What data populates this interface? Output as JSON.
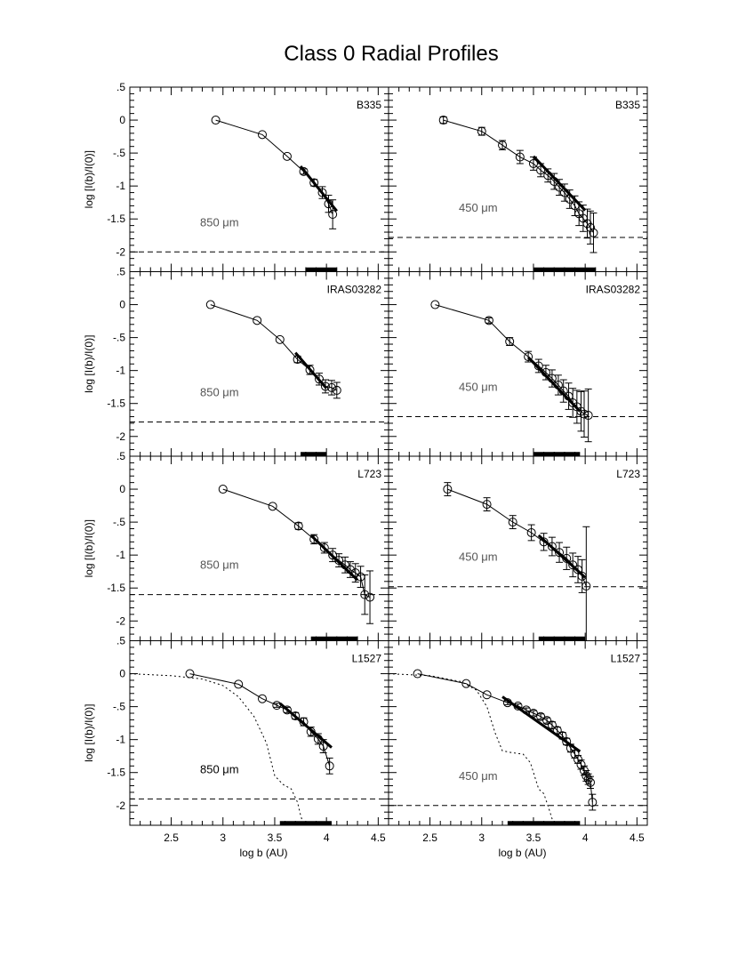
{
  "title": "Class 0 Radial Profiles",
  "xlabel": "log b (AU)",
  "ylabel": "log [I(b)/I(0)]",
  "xlim": [
    2.1,
    4.6
  ],
  "ylim": [
    -2.3,
    0.5
  ],
  "xticks": [
    "2.5",
    "3",
    "3.5",
    "4",
    "4.5"
  ],
  "yticks": [
    ".5",
    "0",
    "-.5",
    "-1",
    "-1.5",
    "-2"
  ],
  "chart_data": [
    {
      "type": "scatter",
      "source": "B335",
      "wavelength_label": "850 μm",
      "x": [
        2.93,
        3.38,
        3.62,
        3.78,
        3.88,
        3.96,
        4.02,
        4.06
      ],
      "y": [
        0.0,
        -0.22,
        -0.55,
        -0.78,
        -0.95,
        -1.1,
        -1.27,
        -1.43
      ],
      "err": [
        0.0,
        0.0,
        0.0,
        0.04,
        0.05,
        0.09,
        0.13,
        0.22
      ],
      "fit": {
        "x": [
          3.75,
          4.1
        ],
        "y": [
          -0.7,
          -1.38
        ]
      },
      "background": -2.0,
      "range": [
        3.8,
        4.1
      ]
    },
    {
      "type": "scatter",
      "source": "B335",
      "wavelength_label": "450 μm",
      "x": [
        2.63,
        3.0,
        3.2,
        3.37,
        3.5,
        3.57,
        3.64,
        3.7,
        3.75,
        3.8,
        3.85,
        3.9,
        3.94,
        3.98,
        4.02,
        4.05,
        4.08
      ],
      "y": [
        0.0,
        -0.17,
        -0.38,
        -0.56,
        -0.66,
        -0.76,
        -0.84,
        -0.93,
        -1.02,
        -1.1,
        -1.2,
        -1.3,
        -1.42,
        -1.49,
        -1.57,
        -1.63,
        -1.71
      ],
      "err": [
        0.05,
        0.06,
        0.07,
        0.1,
        0.1,
        0.1,
        0.1,
        0.12,
        0.12,
        0.13,
        0.14,
        0.15,
        0.18,
        0.2,
        0.22,
        0.25,
        0.3
      ],
      "fit": {
        "x": [
          3.5,
          4.0
        ],
        "y": [
          -0.55,
          -1.37
        ]
      },
      "background": -1.78,
      "range": [
        3.5,
        4.1
      ]
    },
    {
      "type": "scatter",
      "source": "IRAS03282",
      "wavelength_label": "850 μm",
      "x": [
        2.88,
        3.33,
        3.55,
        3.72,
        3.84,
        3.93,
        3.99,
        4.05,
        4.1
      ],
      "y": [
        0.0,
        -0.24,
        -0.53,
        -0.83,
        -0.99,
        -1.13,
        -1.24,
        -1.26,
        -1.3
      ],
      "err": [
        0.0,
        0.0,
        0.0,
        0.05,
        0.07,
        0.09,
        0.1,
        0.11,
        0.12
      ],
      "fit": {
        "x": [
          3.7,
          4.0
        ],
        "y": [
          -0.73,
          -1.27
        ]
      },
      "background": -1.78,
      "range": [
        3.75,
        4.0
      ]
    },
    {
      "type": "scatter",
      "source": "IRAS03282",
      "wavelength_label": "450 μm",
      "x": [
        2.55,
        3.07,
        3.27,
        3.45,
        3.55,
        3.62,
        3.68,
        3.74,
        3.79,
        3.84,
        3.88,
        3.92,
        3.96,
        3.99,
        4.03
      ],
      "y": [
        0.0,
        -0.24,
        -0.56,
        -0.79,
        -0.93,
        -1.03,
        -1.12,
        -1.22,
        -1.31,
        -1.39,
        -1.49,
        -1.55,
        -1.62,
        -1.66,
        -1.68
      ],
      "err": [
        0.0,
        0.04,
        0.06,
        0.08,
        0.1,
        0.11,
        0.13,
        0.15,
        0.17,
        0.2,
        0.22,
        0.25,
        0.3,
        0.35,
        0.4
      ],
      "fit": {
        "x": [
          3.45,
          3.95
        ],
        "y": [
          -0.8,
          -1.62
        ]
      },
      "background": -1.7,
      "range": [
        3.5,
        3.95
      ]
    },
    {
      "type": "scatter",
      "source": "L723",
      "wavelength_label": "850 μm",
      "x": [
        3.0,
        3.48,
        3.73,
        3.88,
        3.98,
        4.06,
        4.12,
        4.18,
        4.23,
        4.28,
        4.33,
        4.37,
        4.42
      ],
      "y": [
        0.0,
        -0.26,
        -0.56,
        -0.76,
        -0.89,
        -1.0,
        -1.08,
        -1.15,
        -1.22,
        -1.27,
        -1.33,
        -1.6,
        -1.64
      ],
      "err": [
        0.0,
        0.0,
        0.05,
        0.07,
        0.08,
        0.1,
        0.1,
        0.12,
        0.12,
        0.14,
        0.16,
        0.3,
        0.4
      ],
      "fit": {
        "x": [
          3.85,
          4.3
        ],
        "y": [
          -0.7,
          -1.38
        ]
      },
      "background": -1.6,
      "range": [
        3.85,
        4.3
      ]
    },
    {
      "type": "scatter",
      "source": "L723",
      "wavelength_label": "450 μm",
      "x": [
        2.67,
        3.05,
        3.3,
        3.48,
        3.6,
        3.68,
        3.75,
        3.82,
        3.88,
        3.93,
        3.97,
        4.01
      ],
      "y": [
        0.0,
        -0.23,
        -0.5,
        -0.66,
        -0.8,
        -0.87,
        -0.96,
        -1.05,
        -1.15,
        -1.22,
        -1.32,
        -1.47
      ],
      "err": [
        0.1,
        0.1,
        0.1,
        0.12,
        0.13,
        0.14,
        0.15,
        0.17,
        0.18,
        0.2,
        0.25,
        0.9
      ],
      "fit": {
        "x": [
          3.55,
          4.0
        ],
        "y": [
          -0.7,
          -1.34
        ]
      },
      "background": -1.48,
      "range": [
        3.55,
        4.0
      ]
    },
    {
      "type": "scatter",
      "source": "L1527",
      "wavelength_label": "850 μm",
      "x": [
        2.68,
        3.15,
        3.38,
        3.52,
        3.62,
        3.7,
        3.78,
        3.85,
        3.92,
        3.97,
        4.03
      ],
      "y": [
        0.0,
        -0.16,
        -0.38,
        -0.48,
        -0.55,
        -0.64,
        -0.73,
        -0.88,
        -0.99,
        -1.1,
        -1.4
      ],
      "err": [
        0.0,
        0.0,
        0.0,
        0.03,
        0.04,
        0.05,
        0.06,
        0.07,
        0.08,
        0.1,
        0.12
      ],
      "fit": {
        "x": [
          3.55,
          4.05
        ],
        "y": [
          -0.45,
          -1.12
        ]
      },
      "model": {
        "x": [
          2.1,
          2.5,
          2.8,
          3.0,
          3.15,
          3.3,
          3.42,
          3.5,
          3.58,
          3.66,
          3.72,
          3.75,
          3.78
        ],
        "y": [
          0.0,
          -0.03,
          -0.08,
          -0.18,
          -0.35,
          -0.65,
          -1.05,
          -1.55,
          -1.68,
          -1.75,
          -1.95,
          -2.15,
          -2.3
        ]
      },
      "background": -1.9,
      "range": [
        3.55,
        4.05
      ]
    },
    {
      "type": "scatter",
      "source": "L1527",
      "wavelength_label": "450 μm",
      "x": [
        2.38,
        2.85,
        3.05,
        3.25,
        3.35,
        3.43,
        3.5,
        3.57,
        3.63,
        3.68,
        3.73,
        3.78,
        3.82,
        3.86,
        3.9,
        3.93,
        3.96,
        3.99,
        4.01,
        4.03,
        4.05,
        4.07
      ],
      "y": [
        0.0,
        -0.15,
        -0.32,
        -0.44,
        -0.49,
        -0.55,
        -0.6,
        -0.65,
        -0.71,
        -0.78,
        -0.86,
        -0.94,
        -1.03,
        -1.13,
        -1.22,
        -1.3,
        -1.38,
        -1.47,
        -1.55,
        -1.6,
        -1.65,
        -1.95
      ],
      "err": [
        0.0,
        0.0,
        0.0,
        0.03,
        0.03,
        0.03,
        0.04,
        0.04,
        0.04,
        0.05,
        0.05,
        0.05,
        0.05,
        0.06,
        0.06,
        0.06,
        0.07,
        0.07,
        0.08,
        0.08,
        0.09,
        0.12
      ],
      "fit": {
        "x": [
          3.2,
          3.95
        ],
        "y": [
          -0.35,
          -1.18
        ]
      },
      "model": {
        "x": [
          2.1,
          2.5,
          2.8,
          2.95,
          3.05,
          3.13,
          3.2,
          3.3,
          3.4,
          3.47,
          3.52,
          3.55,
          3.6,
          3.65,
          3.7
        ],
        "y": [
          0.0,
          -0.03,
          -0.12,
          -0.25,
          -0.5,
          -0.9,
          -1.17,
          -1.2,
          -1.22,
          -1.35,
          -1.6,
          -1.75,
          -1.82,
          -2.05,
          -2.3
        ]
      },
      "background": -2.0,
      "range": [
        3.25,
        3.95
      ]
    }
  ]
}
